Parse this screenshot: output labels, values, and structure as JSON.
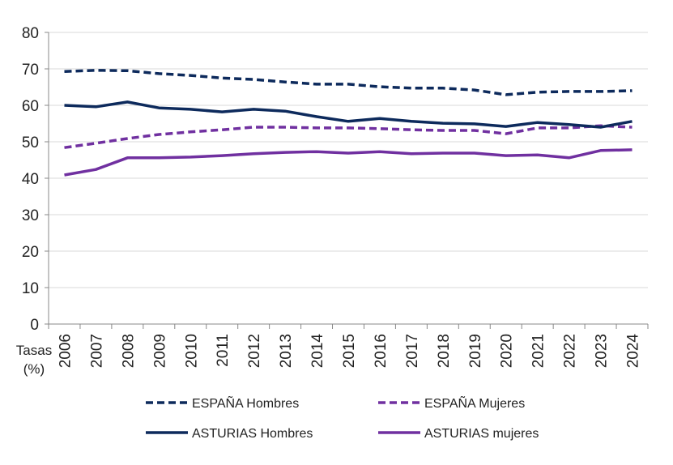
{
  "chart_data": {
    "type": "line",
    "title": "",
    "xlabel": "",
    "ylabel": "Tasas (%)",
    "ylim": [
      0,
      80
    ],
    "yticks": [
      0,
      10,
      20,
      30,
      40,
      50,
      60,
      70,
      80
    ],
    "grid": true,
    "legend_placement": "bottom",
    "categories": [
      "2006",
      "2007",
      "2008",
      "2009",
      "2010",
      "2011",
      "2012",
      "2013",
      "2014",
      "2015",
      "2016",
      "2017",
      "2018",
      "2019",
      "2020",
      "2021",
      "2022",
      "2023",
      "2024"
    ],
    "series": [
      {
        "name": "ESPAÑA Hombres",
        "color": "#0d2a5c",
        "dash": true,
        "values": [
          69.3,
          69.6,
          69.5,
          68.7,
          68.2,
          67.5,
          67.1,
          66.4,
          65.8,
          65.8,
          65.1,
          64.7,
          64.7,
          64.2,
          62.9,
          63.6,
          63.8,
          63.8,
          64.0
        ]
      },
      {
        "name": "ESPAÑA Mujeres",
        "color": "#7030a0",
        "dash": true,
        "values": [
          48.4,
          49.6,
          50.9,
          52.0,
          52.7,
          53.3,
          54.0,
          54.0,
          53.8,
          53.8,
          53.6,
          53.3,
          53.1,
          53.1,
          52.2,
          53.8,
          53.8,
          54.4,
          54.0
        ]
      },
      {
        "name": "ASTURIAS Hombres",
        "color": "#0d2a5c",
        "dash": false,
        "values": [
          60.0,
          59.6,
          60.9,
          59.3,
          58.9,
          58.2,
          58.9,
          58.4,
          56.9,
          55.6,
          56.4,
          55.6,
          55.1,
          54.9,
          54.2,
          55.3,
          54.7,
          54.0,
          55.6
        ]
      },
      {
        "name": "ASTURIAS mujeres",
        "color": "#7030a0",
        "dash": false,
        "values": [
          40.9,
          42.4,
          45.6,
          45.6,
          45.8,
          46.2,
          46.7,
          47.1,
          47.3,
          46.9,
          47.3,
          46.7,
          46.9,
          46.9,
          46.2,
          46.4,
          45.6,
          47.6,
          47.8
        ]
      }
    ]
  }
}
